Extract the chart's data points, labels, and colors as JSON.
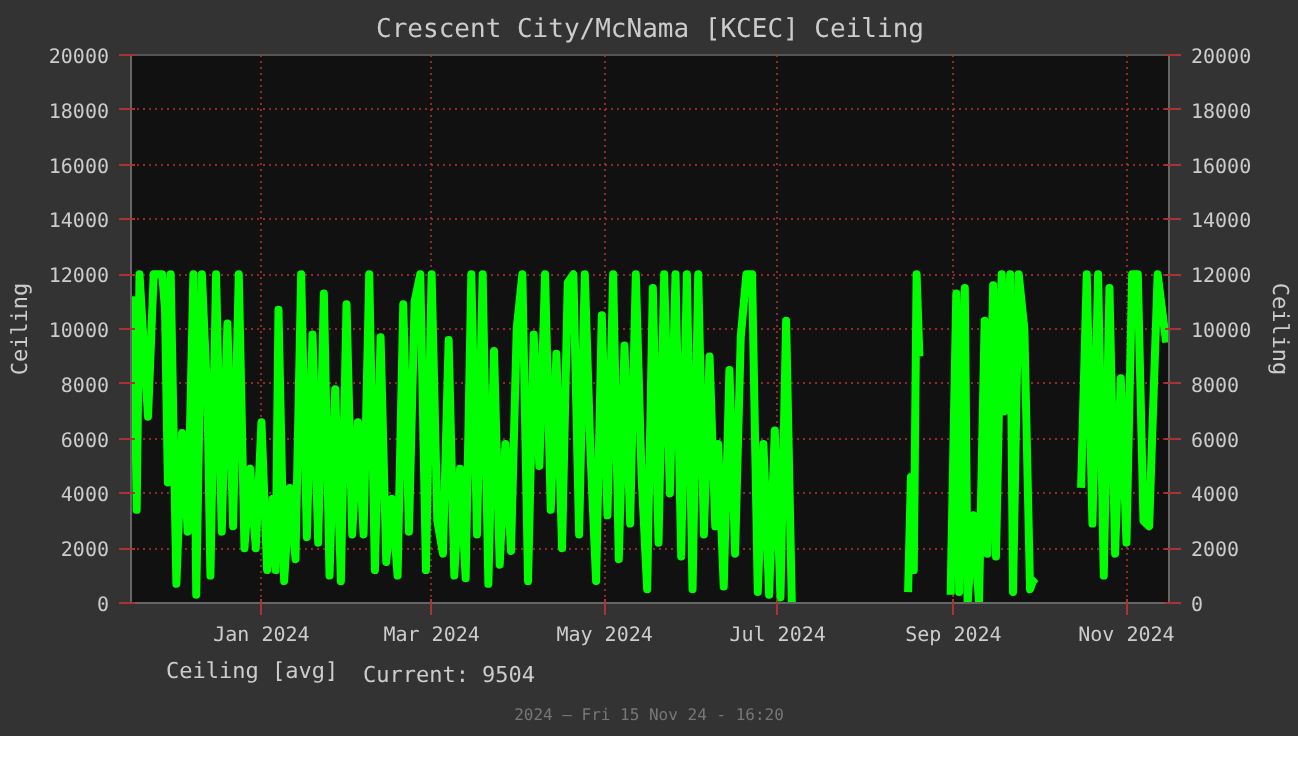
{
  "chart_data": {
    "type": "line",
    "title": "Crescent City/McNama [KCEC] Ceiling",
    "ylabel": "Ceiling",
    "y2label": "Ceiling",
    "annotations": [
      "Current: 9504",
      "2024 — Fri 15 Nov 24 - 16:20"
    ],
    "legend": "bottom left",
    "grid": true,
    "line_style": "solid",
    "xlim": [
      "2023-11-16",
      "2024-11-16"
    ],
    "xticks": [
      {
        "value": "2024-01-01",
        "label": "Jan 2024"
      },
      {
        "value": "2024-03-01",
        "label": "Mar 2024"
      },
      {
        "value": "2024-05-01",
        "label": "May 2024"
      },
      {
        "value": "2024-07-01",
        "label": "Jul 2024"
      },
      {
        "value": "2024-09-01",
        "label": "Sep 2024"
      },
      {
        "value": "2024-11-01",
        "label": "Nov 2024"
      }
    ],
    "ylim": [
      0,
      20000
    ],
    "yticks": [
      0,
      2000,
      4000,
      6000,
      8000,
      10000,
      12000,
      14000,
      16000,
      18000,
      20000
    ],
    "y2lim": [
      0,
      20000
    ],
    "y2ticks": [
      0,
      2000,
      4000,
      6000,
      8000,
      10000,
      12000,
      14000,
      16000,
      18000,
      20000
    ],
    "x": [
      "2023-11-17",
      "2023-11-18",
      "2023-11-19",
      "2023-11-22",
      "2023-11-24",
      "2023-11-27",
      "2023-11-28",
      "2023-11-29",
      "2023-11-30",
      "2023-12-02",
      "2023-12-04",
      "2023-12-06",
      "2023-12-08",
      "2023-12-09",
      "2023-12-11",
      "2023-12-13",
      "2023-12-14",
      "2023-12-16",
      "2023-12-18",
      "2023-12-20",
      "2023-12-22",
      "2023-12-24",
      "2023-12-26",
      "2023-12-28",
      "2023-12-30",
      "2024-01-01",
      "2024-01-03",
      "2024-01-05",
      "2024-01-06",
      "2024-01-07",
      "2024-01-09",
      "2024-01-11",
      "2024-01-13",
      "2024-01-15",
      "2024-01-17",
      "2024-01-19",
      "2024-01-21",
      "2024-01-23",
      "2024-01-25",
      "2024-01-27",
      "2024-01-29",
      "2024-01-31",
      "2024-02-02",
      "2024-02-04",
      "2024-02-06",
      "2024-02-08",
      "2024-02-10",
      "2024-02-12",
      "2024-02-14",
      "2024-02-16",
      "2024-02-18",
      "2024-02-20",
      "2024-02-22",
      "2024-02-24",
      "2024-02-26",
      "2024-02-28",
      "2024-03-01",
      "2024-03-03",
      "2024-03-05",
      "2024-03-07",
      "2024-03-09",
      "2024-03-11",
      "2024-03-13",
      "2024-03-15",
      "2024-03-17",
      "2024-03-19",
      "2024-03-21",
      "2024-03-23",
      "2024-03-25",
      "2024-03-27",
      "2024-03-29",
      "2024-03-31",
      "2024-04-02",
      "2024-04-04",
      "2024-04-06",
      "2024-04-08",
      "2024-04-10",
      "2024-04-12",
      "2024-04-14",
      "2024-04-16",
      "2024-04-18",
      "2024-04-20",
      "2024-04-22",
      "2024-04-24",
      "2024-04-26",
      "2024-04-28",
      "2024-04-30",
      "2024-05-02",
      "2024-05-04",
      "2024-05-06",
      "2024-05-08",
      "2024-05-10",
      "2024-05-12",
      "2024-05-14",
      "2024-05-16",
      "2024-05-18",
      "2024-05-20",
      "2024-05-22",
      "2024-05-24",
      "2024-05-26",
      "2024-05-28",
      "2024-05-30",
      "2024-06-01",
      "2024-06-03",
      "2024-06-05",
      "2024-06-07",
      "2024-06-09",
      "2024-06-10",
      "2024-06-12",
      "2024-06-14",
      "2024-06-16",
      "2024-06-18",
      "2024-06-20",
      "2024-06-22",
      "2024-06-24",
      "2024-06-26",
      "2024-06-28",
      "2024-06-30",
      "2024-07-02",
      "2024-07-04",
      "2024-07-06",
      "2024-07-07",
      "2024-08-16",
      "2024-08-17",
      "2024-08-18",
      "2024-08-19",
      "2024-08-20",
      "2024-08-21",
      "2024-08-31",
      "2024-09-02",
      "2024-09-03",
      "2024-09-05",
      "2024-09-06",
      "2024-09-08",
      "2024-09-10",
      "2024-09-12",
      "2024-09-13",
      "2024-09-15",
      "2024-09-16",
      "2024-09-18",
      "2024-09-19",
      "2024-09-21",
      "2024-09-22",
      "2024-09-24",
      "2024-09-26",
      "2024-09-28",
      "2024-09-29",
      "2024-09-30",
      "2024-10-01",
      "2024-10-16",
      "2024-10-18",
      "2024-10-20",
      "2024-10-22",
      "2024-10-24",
      "2024-10-26",
      "2024-10-28",
      "2024-10-30",
      "2024-11-01",
      "2024-11-03",
      "2024-11-05",
      "2024-11-07",
      "2024-11-09",
      "2024-11-12",
      "2024-11-15"
    ],
    "series": [
      {
        "name": "Ceiling [avg]",
        "color": "#00ff00",
        "values": [
          11200,
          3400,
          12000,
          6800,
          12000,
          12000,
          10700,
          4400,
          12000,
          700,
          6200,
          2600,
          12000,
          300,
          12000,
          7200,
          1000,
          12000,
          2600,
          10200,
          2800,
          12000,
          2000,
          4900,
          2000,
          6600,
          1200,
          3800,
          1200,
          10700,
          800,
          4200,
          1600,
          12000,
          2400,
          9800,
          2200,
          11300,
          1000,
          7800,
          800,
          10900,
          2500,
          6600,
          2500,
          12000,
          1200,
          9700,
          1500,
          3800,
          1000,
          10900,
          2600,
          11000,
          12000,
          1200,
          12000,
          3000,
          1800,
          9600,
          1000,
          4900,
          900,
          12000,
          2500,
          12000,
          700,
          9200,
          1400,
          5800,
          1900,
          10000,
          12000,
          800,
          9800,
          5000,
          12000,
          3400,
          9100,
          2000,
          11700,
          12000,
          2500,
          12000,
          5500,
          800,
          10500,
          3200,
          12000,
          1600,
          9400,
          2900,
          12000,
          4700,
          500,
          11500,
          2200,
          12000,
          4000,
          12000,
          1700,
          12000,
          500,
          12000,
          2500,
          9000,
          2800,
          5800,
          600,
          8500,
          1800,
          9700,
          12000,
          12000,
          400,
          5800,
          300,
          6300,
          200,
          10300,
          0,
          null,
          400,
          4600,
          1200,
          12000,
          9000,
          null,
          300,
          11300,
          400,
          11500,
          0,
          3200,
          0,
          10300,
          1800,
          11600,
          1700,
          12000,
          7000,
          12000,
          400,
          12000,
          10000,
          500,
          800,
          900,
          null,
          4200,
          12000,
          2900,
          12000,
          1000,
          11500,
          1800,
          8200,
          2200,
          12000,
          12000,
          3000,
          2800,
          12000,
          9504
        ]
      }
    ]
  }
}
